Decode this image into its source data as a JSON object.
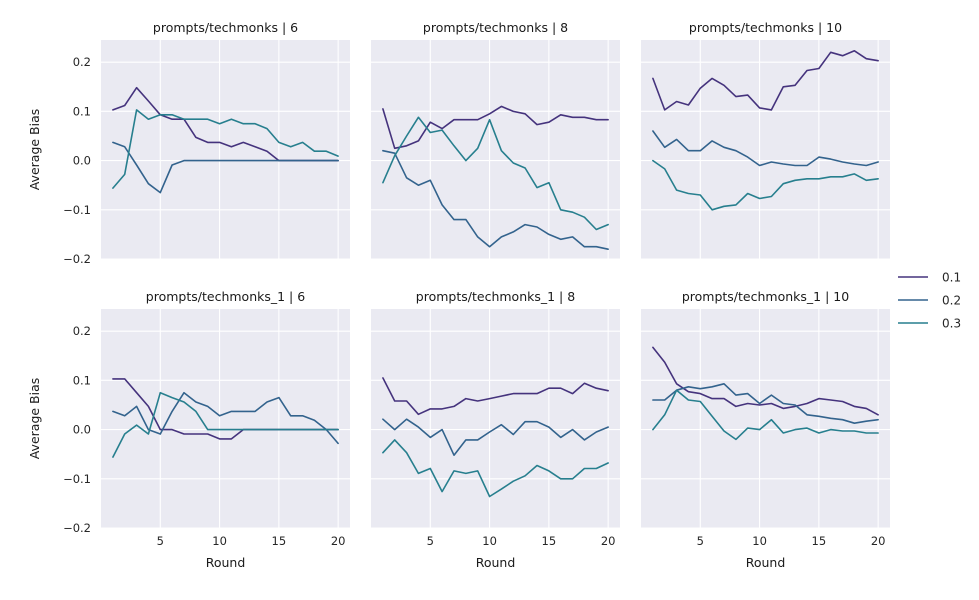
{
  "chart_data": {
    "type": "line",
    "ylabel": "Average Bias",
    "xlabel": "Round",
    "xticks": [
      5,
      10,
      15,
      20
    ],
    "yticks": [
      -0.2,
      -0.1,
      0.0,
      0.1,
      0.2
    ],
    "ytick_labels": [
      "−0.2",
      "−0.1",
      "0.0",
      "0.1",
      "0.2"
    ],
    "xlim": [
      0,
      21
    ],
    "ylim": [
      -0.2,
      0.245
    ],
    "grid": true,
    "legend": {
      "placement": "right",
      "entries": [
        {
          "label": "0.1",
          "color": "#45337d"
        },
        {
          "label": "0.2",
          "color": "#33638d"
        },
        {
          "label": "0.3",
          "color": "#277f8e"
        }
      ]
    },
    "x": [
      1,
      2,
      3,
      4,
      5,
      6,
      7,
      8,
      9,
      10,
      11,
      12,
      13,
      14,
      15,
      16,
      17,
      18,
      19,
      20
    ],
    "panels": [
      {
        "title": "prompts/techmonks | 6",
        "series": [
          {
            "name": "0.1",
            "values": [
              0.103,
              0.112,
              0.148,
              0.121,
              0.093,
              0.084,
              0.084,
              0.047,
              0.037,
              0.037,
              0.028,
              0.037,
              0.028,
              0.019,
              0.0,
              0.0,
              0.0,
              0.0,
              0.0,
              0.0
            ]
          },
          {
            "name": "0.2",
            "values": [
              0.037,
              0.028,
              -0.009,
              -0.047,
              -0.065,
              -0.009,
              0.0,
              0.0,
              0.0,
              0.0,
              0.0,
              0.0,
              0.0,
              0.0,
              0.0,
              0.0,
              0.0,
              0.0,
              0.0,
              0.0
            ]
          },
          {
            "name": "0.3",
            "values": [
              -0.056,
              -0.028,
              0.103,
              0.084,
              0.093,
              0.093,
              0.084,
              0.084,
              0.084,
              0.075,
              0.084,
              0.075,
              0.075,
              0.065,
              0.037,
              0.028,
              0.037,
              0.019,
              0.019,
              0.009
            ]
          }
        ]
      },
      {
        "title": "prompts/techmonks | 8",
        "series": [
          {
            "name": "0.1",
            "values": [
              0.105,
              0.025,
              0.03,
              0.04,
              0.078,
              0.065,
              0.083,
              0.083,
              0.083,
              0.095,
              0.11,
              0.1,
              0.095,
              0.073,
              0.078,
              0.093,
              0.088,
              0.088,
              0.083,
              0.083
            ]
          },
          {
            "name": "0.2",
            "values": [
              0.02,
              0.015,
              -0.035,
              -0.05,
              -0.04,
              -0.09,
              -0.12,
              -0.12,
              -0.155,
              -0.175,
              -0.155,
              -0.145,
              -0.13,
              -0.135,
              -0.15,
              -0.16,
              -0.155,
              -0.175,
              -0.175,
              -0.18
            ]
          },
          {
            "name": "0.3",
            "values": [
              -0.045,
              0.01,
              0.05,
              0.088,
              0.057,
              0.062,
              0.03,
              0.0,
              0.025,
              0.083,
              0.02,
              -0.005,
              -0.015,
              -0.055,
              -0.045,
              -0.1,
              -0.105,
              -0.115,
              -0.14,
              -0.13
            ]
          }
        ]
      },
      {
        "title": "prompts/techmonks | 10",
        "series": [
          {
            "name": "0.1",
            "values": [
              0.167,
              0.103,
              0.12,
              0.113,
              0.147,
              0.167,
              0.153,
              0.13,
              0.133,
              0.107,
              0.103,
              0.15,
              0.153,
              0.183,
              0.187,
              0.22,
              0.213,
              0.223,
              0.207,
              0.203
            ]
          },
          {
            "name": "0.2",
            "values": [
              0.06,
              0.027,
              0.043,
              0.02,
              0.02,
              0.04,
              0.027,
              0.02,
              0.007,
              -0.01,
              -0.003,
              -0.007,
              -0.01,
              -0.01,
              0.007,
              0.003,
              -0.003,
              -0.007,
              -0.01,
              -0.003
            ]
          },
          {
            "name": "0.3",
            "values": [
              0.0,
              -0.017,
              -0.06,
              -0.067,
              -0.07,
              -0.1,
              -0.093,
              -0.09,
              -0.067,
              -0.077,
              -0.073,
              -0.047,
              -0.04,
              -0.037,
              -0.037,
              -0.033,
              -0.033,
              -0.027,
              -0.04,
              -0.037
            ]
          }
        ]
      },
      {
        "title": "prompts/techmonks_1 | 6",
        "series": [
          {
            "name": "0.1",
            "values": [
              0.103,
              0.103,
              0.075,
              0.047,
              0.0,
              0.0,
              -0.009,
              -0.009,
              -0.009,
              -0.019,
              -0.019,
              0.0,
              0.0,
              0.0,
              0.0,
              0.0,
              0.0,
              0.0,
              0.0,
              0.0
            ]
          },
          {
            "name": "0.2",
            "values": [
              0.037,
              0.028,
              0.047,
              0.0,
              -0.009,
              0.037,
              0.075,
              0.056,
              0.047,
              0.028,
              0.037,
              0.037,
              0.037,
              0.056,
              0.065,
              0.028,
              0.028,
              0.019,
              0.0,
              -0.028
            ]
          },
          {
            "name": "0.3",
            "values": [
              -0.056,
              -0.009,
              0.009,
              -0.009,
              0.075,
              0.065,
              0.056,
              0.037,
              0.0,
              0.0,
              0.0,
              0.0,
              0.0,
              0.0,
              0.0,
              0.0,
              0.0,
              0.0,
              0.0,
              0.0
            ]
          }
        ]
      },
      {
        "title": "prompts/techmonks_1 | 8",
        "series": [
          {
            "name": "0.1",
            "values": [
              0.105,
              0.058,
              0.058,
              0.031,
              0.042,
              0.042,
              0.047,
              0.063,
              0.058,
              0.063,
              0.068,
              0.073,
              0.073,
              0.073,
              0.084,
              0.084,
              0.073,
              0.094,
              0.084,
              0.079
            ]
          },
          {
            "name": "0.2",
            "values": [
              0.021,
              0.0,
              0.021,
              0.005,
              -0.016,
              0.0,
              -0.052,
              -0.021,
              -0.021,
              -0.005,
              0.01,
              -0.01,
              0.016,
              0.016,
              0.005,
              -0.016,
              0.0,
              -0.021,
              -0.005,
              0.005
            ]
          },
          {
            "name": "0.3",
            "values": [
              -0.047,
              -0.021,
              -0.047,
              -0.089,
              -0.079,
              -0.126,
              -0.084,
              -0.089,
              -0.084,
              -0.136,
              -0.121,
              -0.105,
              -0.094,
              -0.073,
              -0.084,
              -0.1,
              -0.1,
              -0.079,
              -0.079,
              -0.068
            ]
          }
        ]
      },
      {
        "title": "prompts/techmonks_1 | 10",
        "series": [
          {
            "name": "0.1",
            "values": [
              0.167,
              0.137,
              0.093,
              0.077,
              0.073,
              0.063,
              0.063,
              0.047,
              0.053,
              0.05,
              0.053,
              0.043,
              0.047,
              0.053,
              0.063,
              0.06,
              0.057,
              0.047,
              0.043,
              0.03
            ]
          },
          {
            "name": "0.2",
            "values": [
              0.06,
              0.06,
              0.08,
              0.087,
              0.083,
              0.087,
              0.093,
              0.07,
              0.073,
              0.053,
              0.07,
              0.053,
              0.05,
              0.03,
              0.027,
              0.023,
              0.02,
              0.013,
              0.017,
              0.02
            ]
          },
          {
            "name": "0.3",
            "values": [
              0.0,
              0.03,
              0.08,
              0.06,
              0.057,
              0.027,
              -0.003,
              -0.02,
              0.003,
              0.0,
              0.02,
              -0.007,
              0.0,
              0.003,
              -0.007,
              0.0,
              -0.003,
              -0.003,
              -0.007,
              -0.007
            ]
          }
        ]
      }
    ]
  }
}
